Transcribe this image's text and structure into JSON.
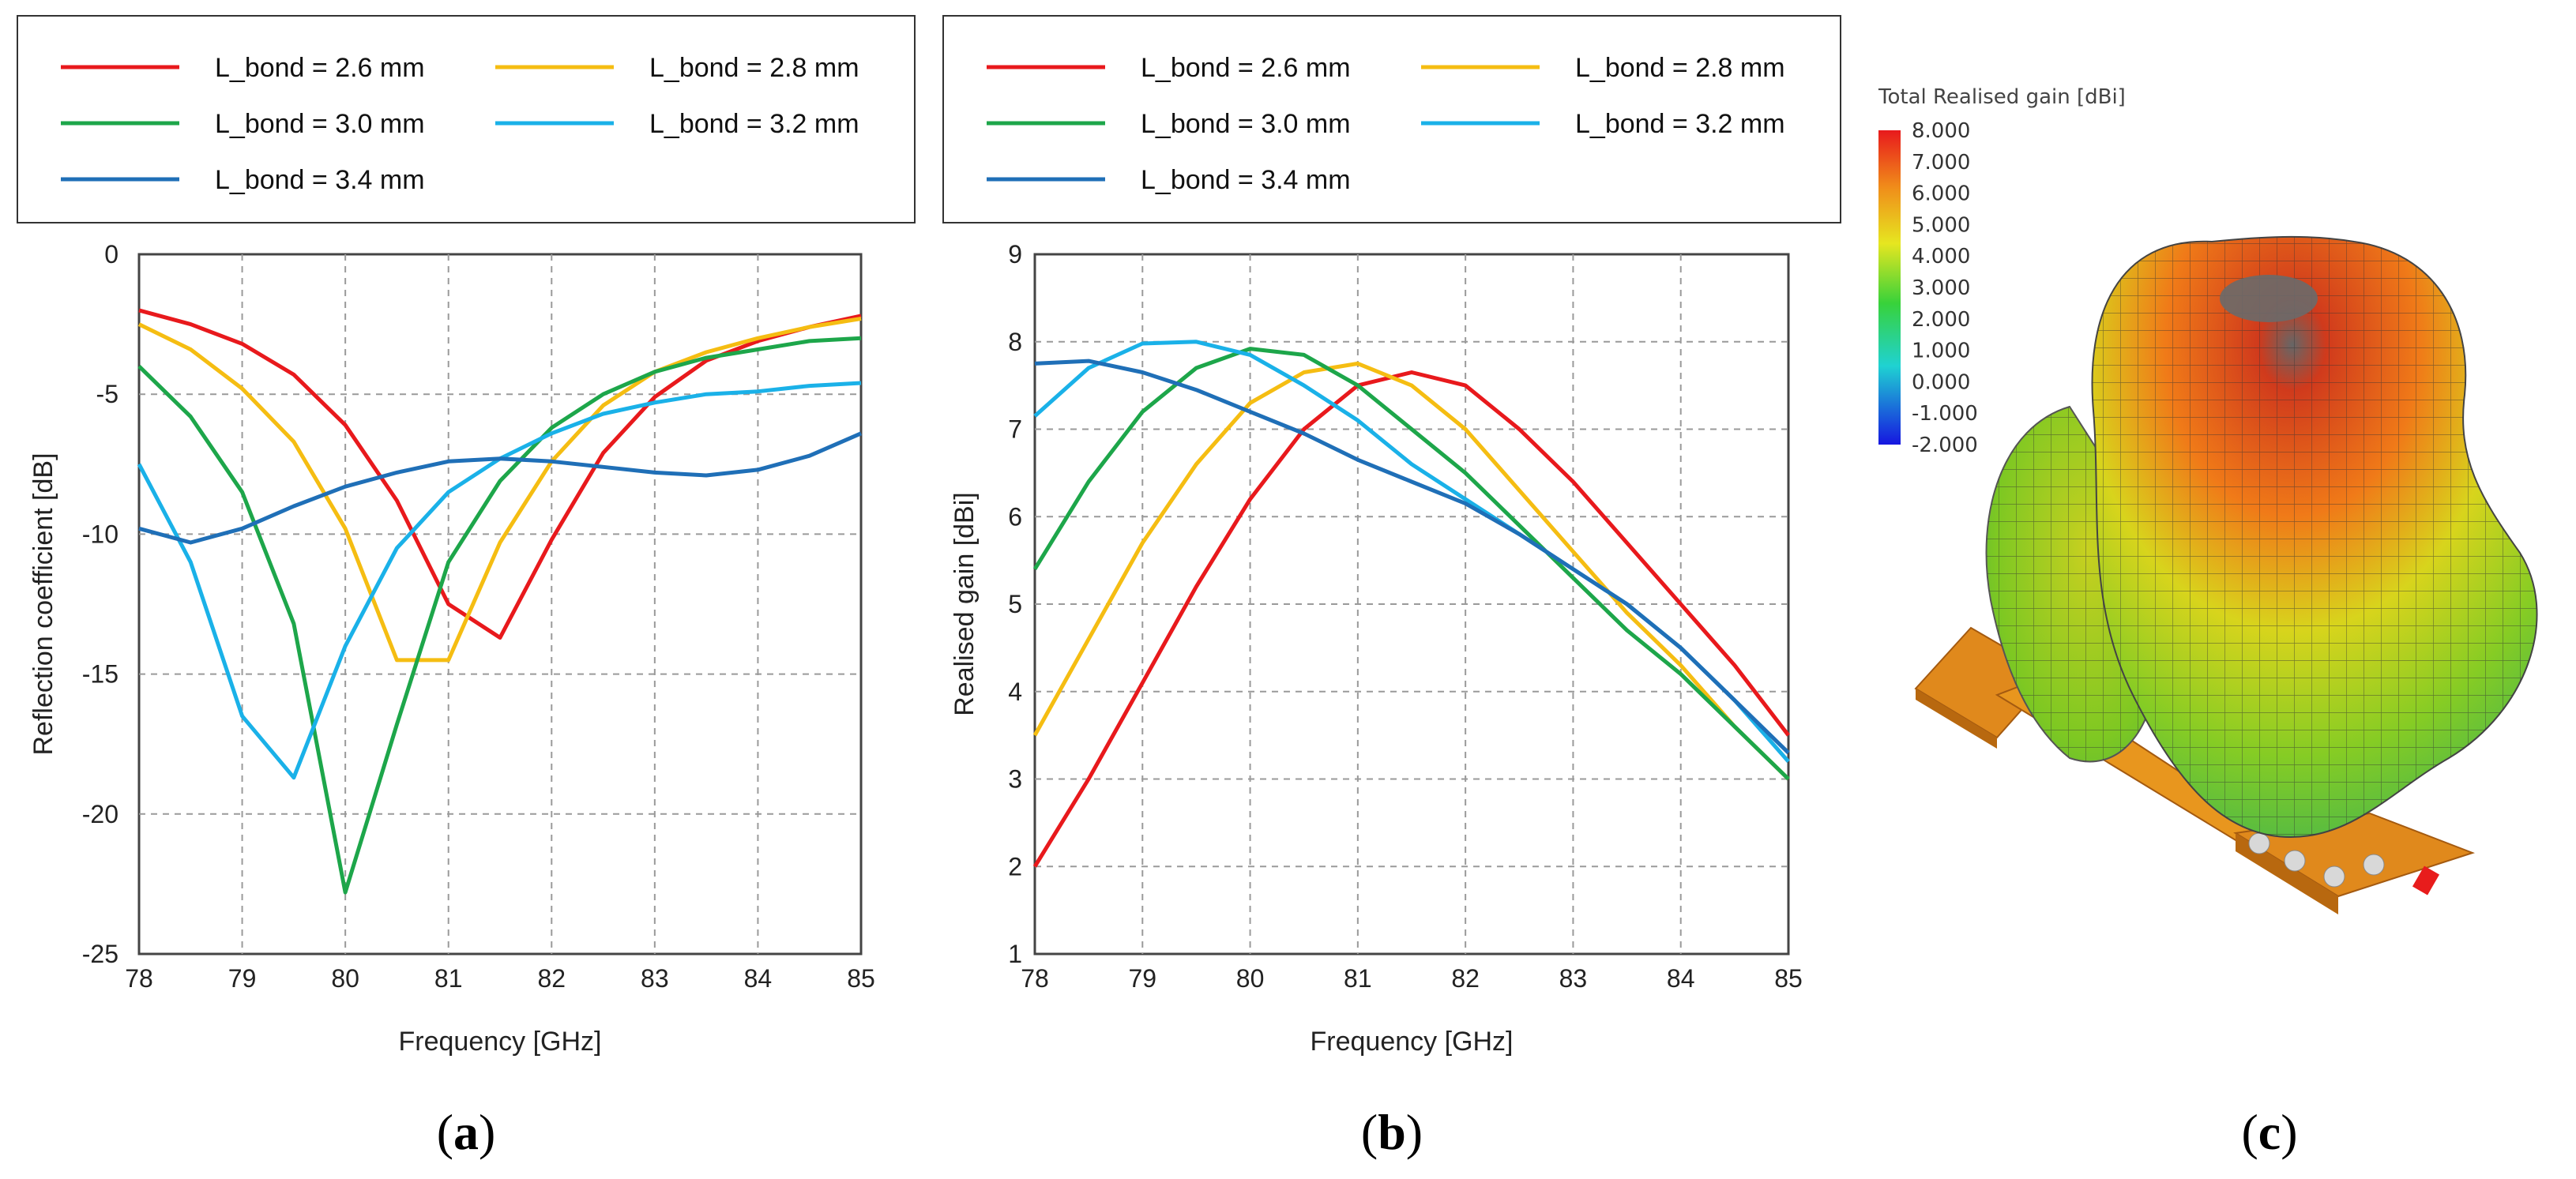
{
  "figure_labels": {
    "a": "a",
    "b": "b",
    "c": "c"
  },
  "chart_data": [
    {
      "type": "line",
      "panel": "a",
      "title": "",
      "xlabel": "Frequency [GHz]",
      "ylabel": "Reflection coefficient [dB]",
      "xlim": [
        78,
        85
      ],
      "ylim": [
        -25,
        0
      ],
      "xticks": [
        78,
        79,
        80,
        81,
        82,
        83,
        84,
        85
      ],
      "yticks": [
        0,
        -5,
        -10,
        -15,
        -20,
        -25
      ],
      "grid": true,
      "legend_position": "top",
      "series": [
        {
          "name": "L_bond = 2.6 mm",
          "color": "#e8191c",
          "x": [
            78,
            78.5,
            79,
            79.5,
            80,
            80.5,
            81,
            81.5,
            82,
            82.5,
            83,
            83.5,
            84,
            84.5,
            85
          ],
          "y": [
            -2.0,
            -2.5,
            -3.2,
            -4.3,
            -6.1,
            -8.8,
            -12.5,
            -13.7,
            -10.2,
            -7.1,
            -5.1,
            -3.8,
            -3.1,
            -2.6,
            -2.2
          ]
        },
        {
          "name": "L_bond = 2.8 mm",
          "color": "#f5bd12",
          "x": [
            78,
            78.5,
            79,
            79.5,
            80,
            80.5,
            81,
            81.5,
            82,
            82.5,
            83,
            83.5,
            84,
            84.5,
            85
          ],
          "y": [
            -2.5,
            -3.4,
            -4.8,
            -6.7,
            -9.8,
            -14.5,
            -14.5,
            -10.3,
            -7.4,
            -5.4,
            -4.2,
            -3.5,
            -3.0,
            -2.6,
            -2.3
          ]
        },
        {
          "name": "L_bond = 3.0 mm",
          "color": "#1da64a",
          "x": [
            78,
            78.5,
            79,
            79.5,
            80,
            80.5,
            81,
            81.5,
            82,
            82.5,
            83,
            83.5,
            84,
            84.5,
            85
          ],
          "y": [
            -4.0,
            -5.8,
            -8.5,
            -13.2,
            -22.8,
            -16.8,
            -11.0,
            -8.1,
            -6.2,
            -5.0,
            -4.2,
            -3.7,
            -3.4,
            -3.1,
            -3.0
          ]
        },
        {
          "name": "L_bond = 3.2 mm",
          "color": "#1ab1e8",
          "x": [
            78,
            78.5,
            79,
            79.5,
            80,
            80.5,
            81,
            81.5,
            82,
            82.5,
            83,
            83.5,
            84,
            84.5,
            85
          ],
          "y": [
            -7.5,
            -11.0,
            -16.5,
            -18.7,
            -14.0,
            -10.5,
            -8.5,
            -7.3,
            -6.4,
            -5.7,
            -5.3,
            -5.0,
            -4.9,
            -4.7,
            -4.6
          ]
        },
        {
          "name": "L_bond = 3.4 mm",
          "color": "#1f6fb7",
          "x": [
            78,
            78.5,
            79,
            79.5,
            80,
            80.5,
            81,
            81.5,
            82,
            82.5,
            83,
            83.5,
            84,
            84.5,
            85
          ],
          "y": [
            -9.8,
            -10.3,
            -9.8,
            -9.0,
            -8.3,
            -7.8,
            -7.4,
            -7.3,
            -7.4,
            -7.6,
            -7.8,
            -7.9,
            -7.7,
            -7.2,
            -6.4
          ]
        }
      ]
    },
    {
      "type": "line",
      "panel": "b",
      "title": "",
      "xlabel": "Frequency [GHz]",
      "ylabel": "Realised gain [dBi]",
      "xlim": [
        78,
        85
      ],
      "ylim": [
        1,
        9
      ],
      "xticks": [
        78,
        79,
        80,
        81,
        82,
        83,
        84,
        85
      ],
      "yticks": [
        1,
        2,
        3,
        4,
        5,
        6,
        7,
        8,
        9
      ],
      "grid": true,
      "legend_position": "top",
      "series": [
        {
          "name": "L_bond = 2.6 mm",
          "color": "#e8191c",
          "x": [
            78,
            78.5,
            79,
            79.5,
            80,
            80.5,
            81,
            81.5,
            82,
            82.5,
            83,
            83.5,
            84,
            84.5,
            85
          ],
          "y": [
            2.0,
            3.0,
            4.1,
            5.2,
            6.2,
            7.0,
            7.5,
            7.65,
            7.5,
            7.0,
            6.4,
            5.7,
            5.0,
            4.3,
            3.5
          ]
        },
        {
          "name": "L_bond = 2.8 mm",
          "color": "#f5bd12",
          "x": [
            78,
            78.5,
            79,
            79.5,
            80,
            80.5,
            81,
            81.5,
            82,
            82.5,
            83,
            83.5,
            84,
            84.5,
            85
          ],
          "y": [
            3.5,
            4.6,
            5.7,
            6.6,
            7.3,
            7.65,
            7.75,
            7.5,
            7.0,
            6.3,
            5.6,
            4.9,
            4.3,
            3.6,
            3.0
          ]
        },
        {
          "name": "L_bond = 3.0 mm",
          "color": "#1da64a",
          "x": [
            78,
            78.5,
            79,
            79.5,
            80,
            80.5,
            81,
            81.5,
            82,
            82.5,
            83,
            83.5,
            84,
            84.5,
            85
          ],
          "y": [
            5.4,
            6.4,
            7.2,
            7.7,
            7.92,
            7.85,
            7.5,
            7.0,
            6.5,
            5.9,
            5.3,
            4.7,
            4.2,
            3.6,
            3.0
          ]
        },
        {
          "name": "L_bond = 3.2 mm",
          "color": "#1ab1e8",
          "x": [
            78,
            78.5,
            79,
            79.5,
            80,
            80.5,
            81,
            81.5,
            82,
            82.5,
            83,
            83.5,
            84,
            84.5,
            85
          ],
          "y": [
            7.15,
            7.7,
            7.98,
            8.0,
            7.85,
            7.5,
            7.1,
            6.6,
            6.2,
            5.8,
            5.4,
            5.0,
            4.5,
            3.9,
            3.2
          ]
        },
        {
          "name": "L_bond = 3.4 mm",
          "color": "#1f6fb7",
          "x": [
            78,
            78.5,
            79,
            79.5,
            80,
            80.5,
            81,
            81.5,
            82,
            82.5,
            83,
            83.5,
            84,
            84.5,
            85
          ],
          "y": [
            7.75,
            7.78,
            7.65,
            7.45,
            7.2,
            6.95,
            6.65,
            6.4,
            6.15,
            5.8,
            5.4,
            5.0,
            4.5,
            3.9,
            3.3
          ]
        }
      ]
    }
  ],
  "pattern": {
    "colorbar_title": "Total Realised gain [dBi]",
    "colorbar_ticks": [
      "8.000",
      "7.000",
      "6.000",
      "5.000",
      "4.000",
      "3.000",
      "2.000",
      "1.000",
      "0.000",
      "-1.000",
      "-2.000"
    ],
    "colors": {
      "red": "#e8281c",
      "orange": "#f07a18",
      "yellow": "#d6d41c",
      "green": "#7ec822",
      "green_dark": "#3fae4a",
      "cyan": "#33c5c8",
      "blue": "#2a2ad8",
      "substrate": "#e0891c"
    }
  }
}
